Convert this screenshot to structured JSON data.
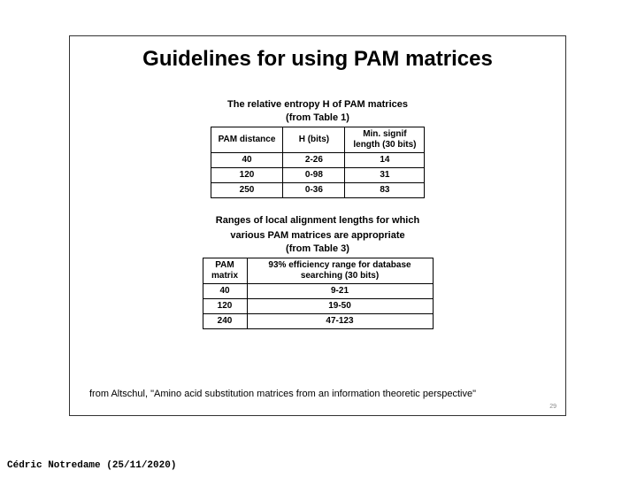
{
  "title": "Guidelines for using PAM matrices",
  "table1": {
    "caption_line1": "The relative entropy H of PAM matrices",
    "caption_line2": "(from Table 1)",
    "columns": [
      "PAM distance",
      "H (bits)",
      "Min. signif length (30 bits)"
    ],
    "rows": [
      [
        "40",
        "2-26",
        "14"
      ],
      [
        "120",
        "0-98",
        "31"
      ],
      [
        "250",
        "0-36",
        "83"
      ]
    ]
  },
  "table2": {
    "caption_line1": "Ranges of local alignment lengths for which",
    "caption_line2": "various PAM matrices are appropriate",
    "caption_line3": "(from Table 3)",
    "columns": [
      "PAM matrix",
      "93% efficiency range for database searching (30 bits)"
    ],
    "rows": [
      [
        "40",
        "9-21"
      ],
      [
        "120",
        "19-50"
      ],
      [
        "240",
        "47-123"
      ]
    ]
  },
  "citation": "from Altschul, \"Amino acid substitution matrices from an information  theoretic perspective\"",
  "page_number": "29",
  "footer_credit": "Cédric Notredame (25/11/2020)",
  "colors": {
    "border": "#333333",
    "text": "#000000",
    "background": "#ffffff"
  }
}
